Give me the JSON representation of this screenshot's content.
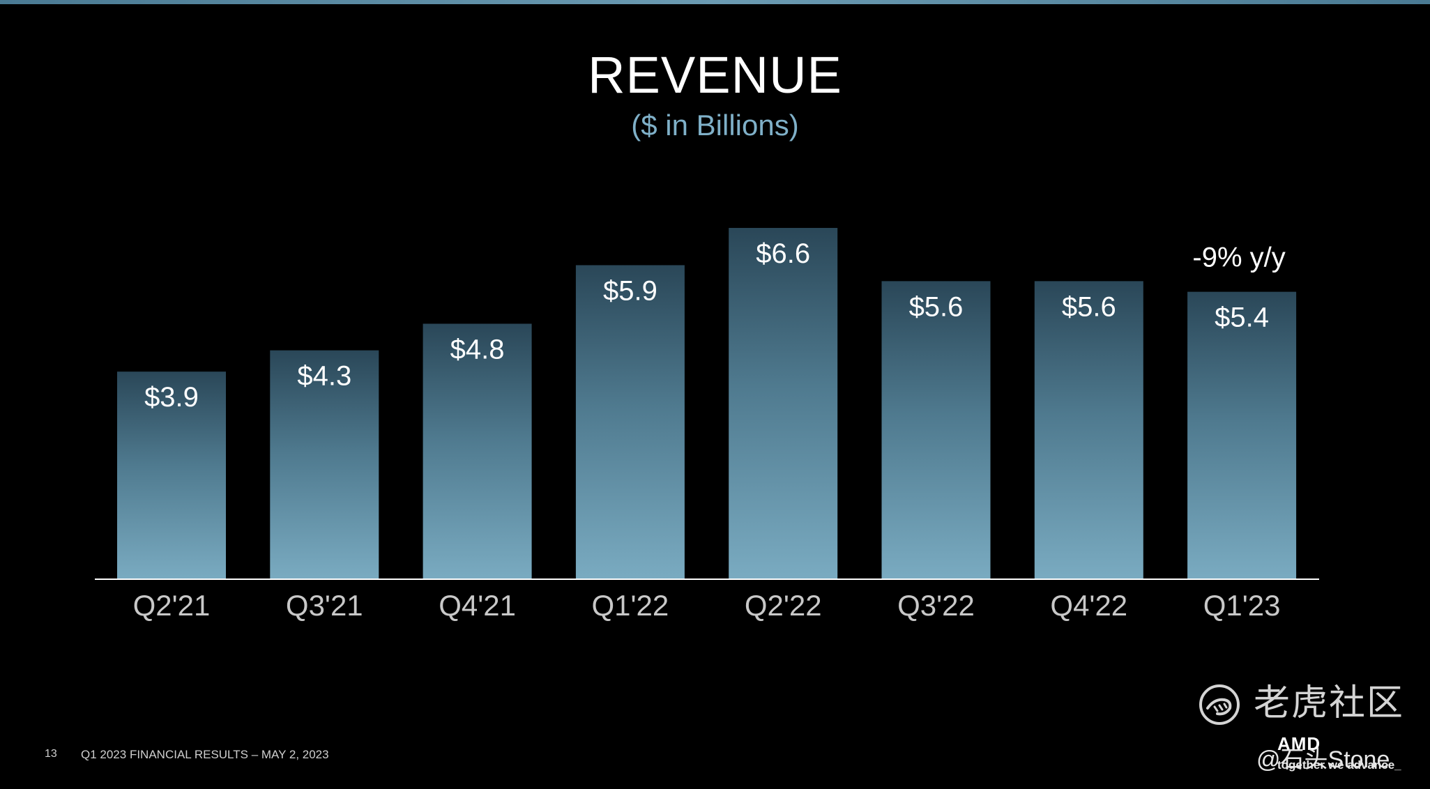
{
  "chart_data": {
    "type": "bar",
    "title": "REVENUE",
    "subtitle": "($ in Billions)",
    "categories": [
      "Q2'21",
      "Q3'21",
      "Q4'21",
      "Q1'22",
      "Q2'22",
      "Q3'22",
      "Q4'22",
      "Q1'23"
    ],
    "values": [
      3.9,
      4.3,
      4.8,
      5.9,
      6.6,
      5.6,
      5.6,
      5.4
    ],
    "data_labels": [
      "$3.9",
      "$4.3",
      "$4.8",
      "$5.9",
      "$6.6",
      "$5.6",
      "$5.6",
      "$5.4"
    ],
    "annotations": [
      {
        "category": "Q1'23",
        "text": "-9% y/y"
      }
    ],
    "ylim": [
      0,
      6.6
    ],
    "grid": false,
    "legend": "none",
    "colors": {
      "bar_top": "#2a4758",
      "bar_bottom": "#7aabc1",
      "axis": "#ffffff",
      "tick_label": "#c8c8c8",
      "subtitle": "#7fb0c8"
    }
  },
  "footer": {
    "page_number": "13",
    "text": "Q1 2023 FINANCIAL RESULTS – MAY 2, 2023"
  },
  "branding": {
    "logo": "AMD",
    "tagline": "together we advance_"
  },
  "watermark": {
    "icon": "tiger-community-icon",
    "site_name": "老虎社区",
    "user": "@石头Stone"
  }
}
